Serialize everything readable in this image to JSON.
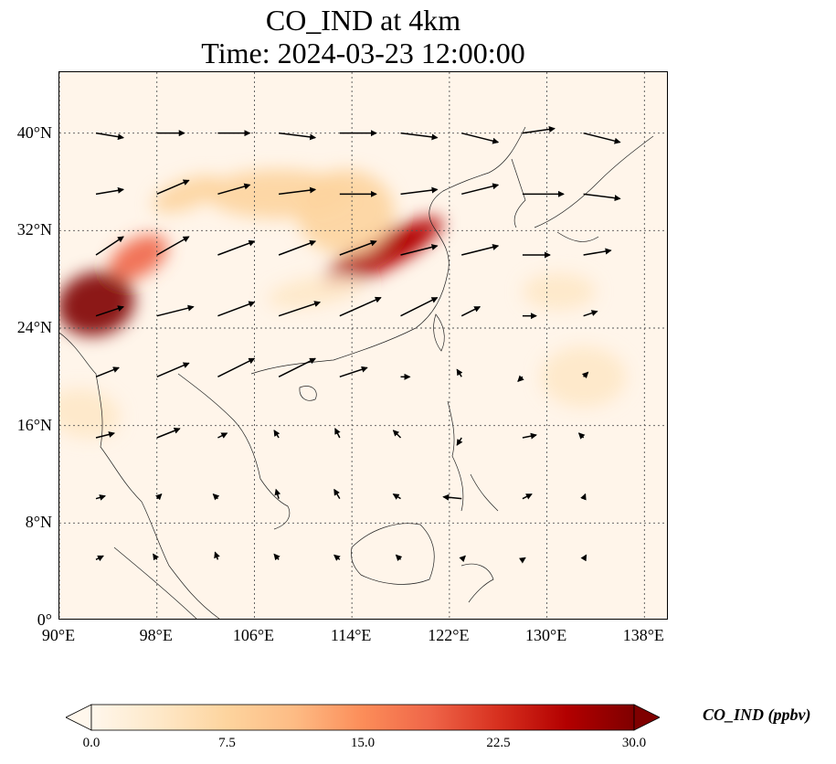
{
  "title": {
    "line1": "CO_IND at 4km",
    "line2": "Time: 2024-03-23 12:00:00"
  },
  "map": {
    "extent": {
      "lon_min": 90,
      "lon_max": 140,
      "lat_min": 0,
      "lat_max": 45
    },
    "y_ticks": [
      {
        "lat": 40,
        "label": "40°N"
      },
      {
        "lat": 32,
        "label": "32°N"
      },
      {
        "lat": 24,
        "label": "24°N"
      },
      {
        "lat": 16,
        "label": "16°N"
      },
      {
        "lat": 8,
        "label": "8°N"
      },
      {
        "lat": 0,
        "label": "0°"
      }
    ],
    "x_ticks": [
      {
        "lon": 90,
        "label": "90°E"
      },
      {
        "lon": 98,
        "label": "98°E"
      },
      {
        "lon": 106,
        "label": "106°E"
      },
      {
        "lon": 114,
        "label": "114°E"
      },
      {
        "lon": 122,
        "label": "122°E"
      },
      {
        "lon": 130,
        "label": "130°E"
      },
      {
        "lon": 138,
        "label": "138°E"
      }
    ],
    "colormap": "OrRd",
    "plumes": [
      {
        "lon": 93,
        "lat": 26,
        "rx": 3.2,
        "ry": 2.6,
        "rot": -15,
        "level": 30
      },
      {
        "lon": 116.5,
        "lat": 30.2,
        "rx": 5.6,
        "ry": 1.4,
        "rot": -28,
        "level": 28
      },
      {
        "lon": 118,
        "lat": 30.8,
        "rx": 2.2,
        "ry": 1.1,
        "rot": -20,
        "level": 26
      },
      {
        "lon": 96.5,
        "lat": 29.8,
        "rx": 2.6,
        "ry": 1.5,
        "rot": -30,
        "level": 18
      },
      {
        "lon": 108,
        "lat": 35,
        "rx": 6,
        "ry": 2,
        "rot": 0,
        "level": 8
      },
      {
        "lon": 113.5,
        "lat": 33.5,
        "rx": 4,
        "ry": 3.5,
        "rot": 0,
        "level": 9
      },
      {
        "lon": 100.5,
        "lat": 35,
        "rx": 3,
        "ry": 1.2,
        "rot": -20,
        "level": 7
      },
      {
        "lon": 92,
        "lat": 17,
        "rx": 3,
        "ry": 2,
        "rot": 10,
        "level": 5
      },
      {
        "lon": 133,
        "lat": 20,
        "rx": 3.5,
        "ry": 2.5,
        "rot": 0,
        "level": 5
      },
      {
        "lon": 131,
        "lat": 27,
        "rx": 3,
        "ry": 1.5,
        "rot": 0,
        "level": 4
      },
      {
        "lon": 111,
        "lat": 27,
        "rx": 4,
        "ry": 1.2,
        "rot": -10,
        "level": 5
      }
    ],
    "wind_vectors": [
      {
        "lon": 93,
        "lat": 35,
        "u": 3,
        "v": 0.5
      },
      {
        "lon": 98,
        "lat": 35,
        "u": 3.5,
        "v": 1.5
      },
      {
        "lon": 103,
        "lat": 35,
        "u": 3.5,
        "v": 1
      },
      {
        "lon": 108,
        "lat": 35,
        "u": 4,
        "v": 0.5
      },
      {
        "lon": 113,
        "lat": 35,
        "u": 4,
        "v": 0
      },
      {
        "lon": 118,
        "lat": 35,
        "u": 4,
        "v": 0.5
      },
      {
        "lon": 123,
        "lat": 35,
        "u": 4,
        "v": 1
      },
      {
        "lon": 128,
        "lat": 35,
        "u": 4.5,
        "v": 0
      },
      {
        "lon": 133,
        "lat": 35,
        "u": 4,
        "v": -0.5
      },
      {
        "lon": 93,
        "lat": 40,
        "u": 3,
        "v": -0.5
      },
      {
        "lon": 98,
        "lat": 40,
        "u": 3,
        "v": 0
      },
      {
        "lon": 103,
        "lat": 40,
        "u": 3.5,
        "v": 0
      },
      {
        "lon": 108,
        "lat": 40,
        "u": 4,
        "v": -0.5
      },
      {
        "lon": 113,
        "lat": 40,
        "u": 4,
        "v": 0
      },
      {
        "lon": 118,
        "lat": 40,
        "u": 4,
        "v": -0.5
      },
      {
        "lon": 123,
        "lat": 40,
        "u": 4,
        "v": -1
      },
      {
        "lon": 128,
        "lat": 40,
        "u": 3.5,
        "v": 0.5
      },
      {
        "lon": 133,
        "lat": 40,
        "u": 4,
        "v": -1
      },
      {
        "lon": 93,
        "lat": 30,
        "u": 3,
        "v": 2
      },
      {
        "lon": 98,
        "lat": 30,
        "u": 3.5,
        "v": 2
      },
      {
        "lon": 103,
        "lat": 30,
        "u": 4,
        "v": 1.5
      },
      {
        "lon": 108,
        "lat": 30,
        "u": 4,
        "v": 1.5
      },
      {
        "lon": 113,
        "lat": 30,
        "u": 4,
        "v": 1.5
      },
      {
        "lon": 118,
        "lat": 30,
        "u": 4,
        "v": 1
      },
      {
        "lon": 123,
        "lat": 30,
        "u": 4,
        "v": 1
      },
      {
        "lon": 128,
        "lat": 30,
        "u": 3,
        "v": 0
      },
      {
        "lon": 133,
        "lat": 30,
        "u": 3,
        "v": 0.5
      },
      {
        "lon": 93,
        "lat": 25,
        "u": 3,
        "v": 1
      },
      {
        "lon": 98,
        "lat": 25,
        "u": 4,
        "v": 1
      },
      {
        "lon": 103,
        "lat": 25,
        "u": 4,
        "v": 1.5
      },
      {
        "lon": 108,
        "lat": 25,
        "u": 4.5,
        "v": 1.5
      },
      {
        "lon": 113,
        "lat": 25,
        "u": 4.5,
        "v": 2
      },
      {
        "lon": 118,
        "lat": 25,
        "u": 4,
        "v": 2
      },
      {
        "lon": 123,
        "lat": 25,
        "u": 2,
        "v": 1
      },
      {
        "lon": 128,
        "lat": 25,
        "u": 1.5,
        "v": 0
      },
      {
        "lon": 133,
        "lat": 25,
        "u": 1.5,
        "v": 0.5
      },
      {
        "lon": 93,
        "lat": 20,
        "u": 2.5,
        "v": 1
      },
      {
        "lon": 98,
        "lat": 20,
        "u": 3.5,
        "v": 1.5
      },
      {
        "lon": 103,
        "lat": 20,
        "u": 4,
        "v": 2
      },
      {
        "lon": 108,
        "lat": 20,
        "u": 4,
        "v": 2
      },
      {
        "lon": 113,
        "lat": 20,
        "u": 3,
        "v": 1
      },
      {
        "lon": 118,
        "lat": 20,
        "u": 1,
        "v": 0
      },
      {
        "lon": 123,
        "lat": 20,
        "u": -0.5,
        "v": 0.8
      },
      {
        "lon": 128,
        "lat": 20,
        "u": -0.5,
        "v": -0.5
      },
      {
        "lon": 133,
        "lat": 20,
        "u": 0.5,
        "v": 0.5
      },
      {
        "lon": 93,
        "lat": 15,
        "u": 2,
        "v": 0.5
      },
      {
        "lon": 98,
        "lat": 15,
        "u": 2.5,
        "v": 1
      },
      {
        "lon": 103,
        "lat": 15,
        "u": 1,
        "v": 0.5
      },
      {
        "lon": 108,
        "lat": 15,
        "u": -0.5,
        "v": 0.8
      },
      {
        "lon": 113,
        "lat": 15,
        "u": -0.5,
        "v": 1
      },
      {
        "lon": 118,
        "lat": 15,
        "u": -0.8,
        "v": 0.8
      },
      {
        "lon": 123,
        "lat": 15,
        "u": -0.5,
        "v": -0.8
      },
      {
        "lon": 128,
        "lat": 15,
        "u": 1.5,
        "v": 0.3
      },
      {
        "lon": 133,
        "lat": 15,
        "u": -0.5,
        "v": 0.5
      },
      {
        "lon": 93,
        "lat": 10,
        "u": 1,
        "v": 0.3
      },
      {
        "lon": 98,
        "lat": 10,
        "u": 0.5,
        "v": 0.5
      },
      {
        "lon": 103,
        "lat": 10,
        "u": -0.5,
        "v": 0.5
      },
      {
        "lon": 108,
        "lat": 10,
        "u": -0.3,
        "v": 1
      },
      {
        "lon": 113,
        "lat": 10,
        "u": -0.6,
        "v": 1
      },
      {
        "lon": 118,
        "lat": 10,
        "u": -0.8,
        "v": 0.5
      },
      {
        "lon": 123,
        "lat": 10,
        "u": -2,
        "v": 0.2
      },
      {
        "lon": 128,
        "lat": 10,
        "u": 1,
        "v": 0.5
      },
      {
        "lon": 133,
        "lat": 10,
        "u": 0.2,
        "v": 0.5
      },
      {
        "lon": 93,
        "lat": 5,
        "u": 0.8,
        "v": 0.4
      },
      {
        "lon": 98,
        "lat": 5,
        "u": -0.4,
        "v": 0.6
      },
      {
        "lon": 103,
        "lat": 5,
        "u": -0.3,
        "v": 0.8
      },
      {
        "lon": 108,
        "lat": 5,
        "u": -0.5,
        "v": 0.6
      },
      {
        "lon": 113,
        "lat": 5,
        "u": -0.6,
        "v": 0.5
      },
      {
        "lon": 118,
        "lat": 5,
        "u": -0.5,
        "v": 0.5
      },
      {
        "lon": 123,
        "lat": 5,
        "u": 0.4,
        "v": 0.4
      },
      {
        "lon": 128,
        "lat": 5,
        "u": 0.3,
        "v": 0.2
      },
      {
        "lon": 133,
        "lat": 5,
        "u": 0.3,
        "v": 0.5
      }
    ]
  },
  "colorbar": {
    "label": "CO_IND (ppbv)",
    "min": 0,
    "max": 30,
    "ticks": [
      {
        "value": 0,
        "label": "0.0"
      },
      {
        "value": 7.5,
        "label": "7.5"
      },
      {
        "value": 15,
        "label": "15.0"
      },
      {
        "value": 22.5,
        "label": "22.5"
      },
      {
        "value": 30,
        "label": "30.0"
      }
    ],
    "colors": [
      "#fff7ec",
      "#fee8c8",
      "#fdd49e",
      "#fdbb84",
      "#fc8d59",
      "#ef6548",
      "#d7301f",
      "#b30000",
      "#7f0000"
    ]
  }
}
